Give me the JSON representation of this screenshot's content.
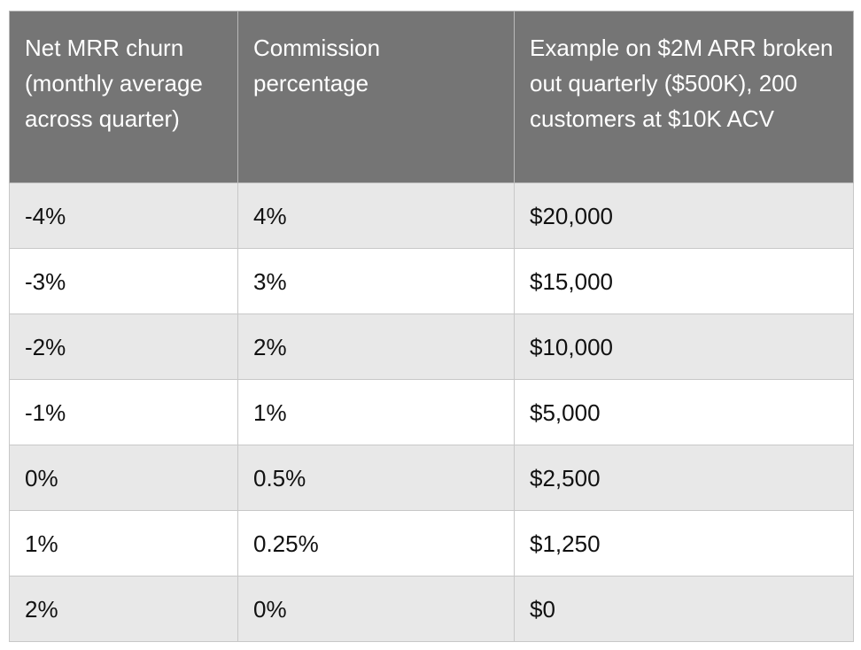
{
  "table": {
    "headers": [
      "Net MRR churn (monthly average across quarter)",
      "Commission percentage",
      "Example on $2M ARR broken out quarterly ($500K), 200 customers at $10K ACV"
    ],
    "rows": [
      [
        "-4%",
        "4%",
        "$20,000"
      ],
      [
        "-3%",
        "3%",
        "$15,000"
      ],
      [
        "-2%",
        "2%",
        "$10,000"
      ],
      [
        "-1%",
        "1%",
        "$5,000"
      ],
      [
        "0%",
        "0.5%",
        "$2,500"
      ],
      [
        "1%",
        "0.25%",
        "$1,250"
      ],
      [
        "2%",
        "0%",
        "$0"
      ]
    ]
  },
  "colors": {
    "header_bg": "#757575",
    "header_text": "#ffffff",
    "row_shaded": "#e8e8e8",
    "row_plain": "#ffffff",
    "border": "#c8c8c8"
  }
}
